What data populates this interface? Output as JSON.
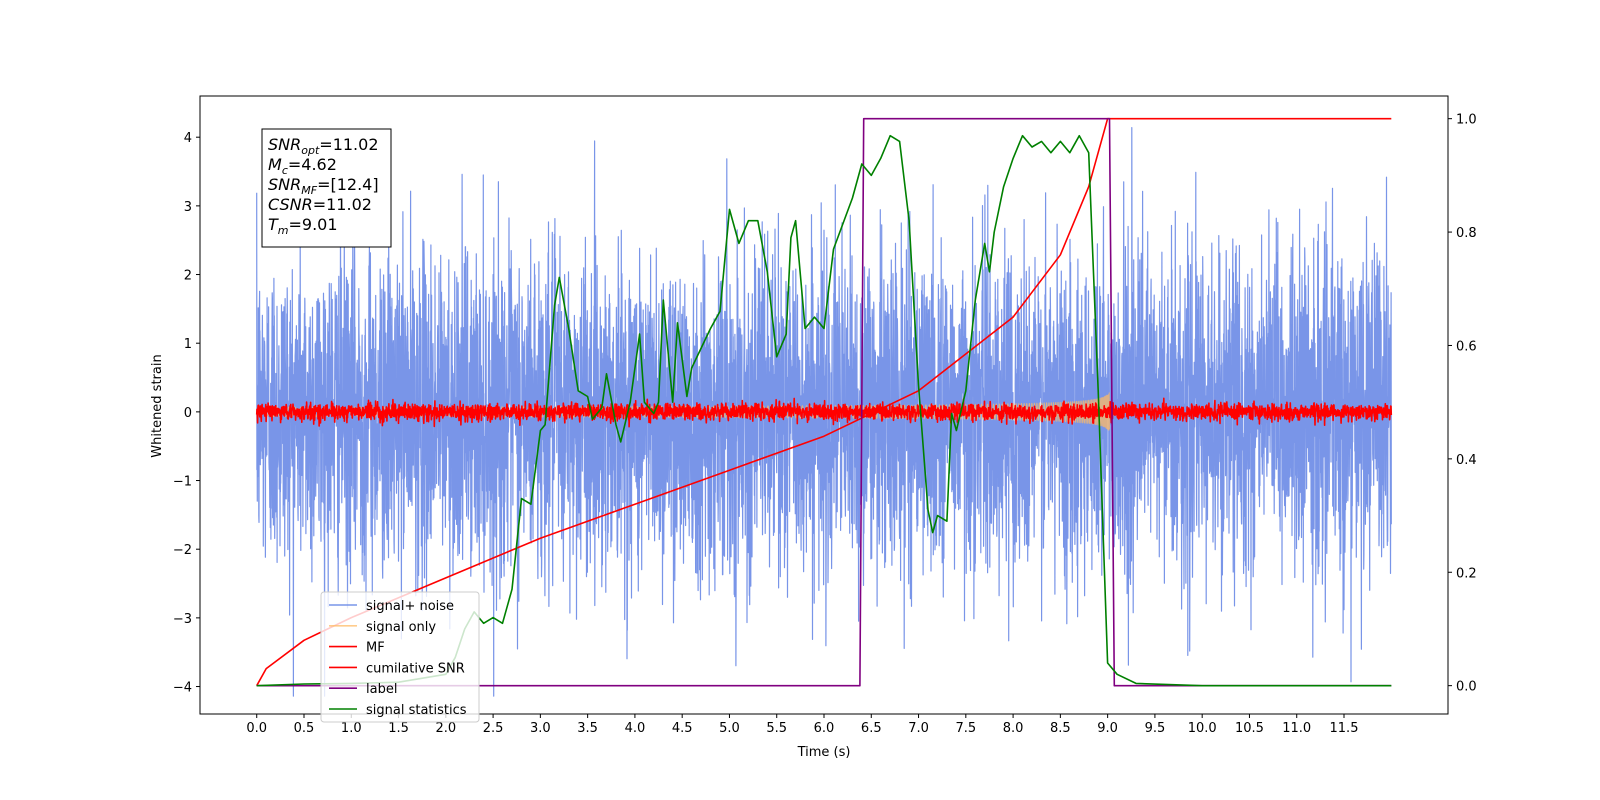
{
  "chart_data": {
    "type": "line",
    "xlabel": "Time (s)",
    "ylabel": "Whitened strain",
    "xlim": [
      -0.6,
      12.6
    ],
    "ylim": [
      -4.4,
      4.6
    ],
    "y2lim": [
      -0.05,
      1.04
    ],
    "x_ticks": [
      0.0,
      0.5,
      1.0,
      1.5,
      2.0,
      2.5,
      3.0,
      3.5,
      4.0,
      4.5,
      5.0,
      5.5,
      6.0,
      6.5,
      7.0,
      7.5,
      8.0,
      8.5,
      9.0,
      9.5,
      10.0,
      10.5,
      11.0,
      11.5
    ],
    "x_tick_labels": [
      "0.0",
      "0.5",
      "1.0",
      "1.5",
      "2.0",
      "2.5",
      "3.0",
      "3.5",
      "4.0",
      "4.5",
      "5.0",
      "5.5",
      "6.0",
      "6.5",
      "7.0",
      "7.5",
      "8.0",
      "8.5",
      "9.0",
      "9.5",
      "10.0",
      "10.5",
      "11.0",
      "11.5"
    ],
    "y_ticks": [
      -4,
      -3,
      -2,
      -1,
      0,
      1,
      2,
      3,
      4
    ],
    "y_tick_labels": [
      "−4",
      "−3",
      "−2",
      "−1",
      "0",
      "1",
      "2",
      "3",
      "4"
    ],
    "y2_ticks": [
      0.0,
      0.2,
      0.4,
      0.6,
      0.8,
      1.0
    ],
    "y2_tick_labels": [
      "0.0",
      "0.2",
      "0.4",
      "0.6",
      "0.8",
      "1.0"
    ],
    "grid": false,
    "legend_position": "lower-left",
    "series": [
      {
        "name": "signal+ noise",
        "color": "#6a8ae6",
        "axis": "left",
        "kind": "noise",
        "x_range": [
          0,
          12
        ],
        "std": 1.15
      },
      {
        "name": "signal only",
        "color": "#ffbb66",
        "axis": "left",
        "kind": "chirp",
        "x_range": [
          0,
          9.02
        ],
        "peak_amplitude": 0.8
      },
      {
        "name": "MF",
        "color": "#ff0000",
        "axis": "left",
        "kind": "noise",
        "x_range": [
          0,
          12
        ],
        "std": 0.06
      },
      {
        "name": "cumilative SNR",
        "color": "#ff0000",
        "axis": "right",
        "points": [
          [
            0.0,
            0.0
          ],
          [
            0.1,
            0.03
          ],
          [
            0.5,
            0.08
          ],
          [
            1.0,
            0.12
          ],
          [
            2.0,
            0.19
          ],
          [
            3.0,
            0.26
          ],
          [
            4.0,
            0.32
          ],
          [
            5.0,
            0.38
          ],
          [
            6.0,
            0.44
          ],
          [
            7.0,
            0.52
          ],
          [
            8.0,
            0.65
          ],
          [
            8.5,
            0.76
          ],
          [
            8.8,
            0.88
          ],
          [
            9.0,
            1.0
          ],
          [
            12.0,
            1.0
          ]
        ]
      },
      {
        "name": "label",
        "color": "#800080",
        "axis": "right",
        "points": [
          [
            0.0,
            0.0
          ],
          [
            6.38,
            0.0
          ],
          [
            6.42,
            1.0
          ],
          [
            9.02,
            1.0
          ],
          [
            9.07,
            0.0
          ],
          [
            12.0,
            0.0
          ]
        ]
      },
      {
        "name": "signal statistics",
        "color": "#008000",
        "axis": "right",
        "points": [
          [
            0.0,
            0.0
          ],
          [
            0.5,
            0.003
          ],
          [
            1.0,
            0.004
          ],
          [
            1.5,
            0.006
          ],
          [
            2.0,
            0.02
          ],
          [
            2.1,
            0.05
          ],
          [
            2.2,
            0.1
          ],
          [
            2.3,
            0.13
          ],
          [
            2.35,
            0.12
          ],
          [
            2.4,
            0.11
          ],
          [
            2.5,
            0.12
          ],
          [
            2.6,
            0.11
          ],
          [
            2.7,
            0.17
          ],
          [
            2.8,
            0.33
          ],
          [
            2.9,
            0.32
          ],
          [
            3.0,
            0.45
          ],
          [
            3.05,
            0.46
          ],
          [
            3.15,
            0.67
          ],
          [
            3.2,
            0.72
          ],
          [
            3.3,
            0.63
          ],
          [
            3.4,
            0.52
          ],
          [
            3.5,
            0.51
          ],
          [
            3.55,
            0.47
          ],
          [
            3.65,
            0.49
          ],
          [
            3.7,
            0.55
          ],
          [
            3.8,
            0.46
          ],
          [
            3.85,
            0.43
          ],
          [
            3.95,
            0.5
          ],
          [
            4.05,
            0.62
          ],
          [
            4.1,
            0.5
          ],
          [
            4.2,
            0.48
          ],
          [
            4.25,
            0.5
          ],
          [
            4.3,
            0.68
          ],
          [
            4.4,
            0.5
          ],
          [
            4.45,
            0.64
          ],
          [
            4.55,
            0.51
          ],
          [
            4.6,
            0.56
          ],
          [
            4.8,
            0.63
          ],
          [
            4.9,
            0.66
          ],
          [
            5.0,
            0.84
          ],
          [
            5.1,
            0.78
          ],
          [
            5.2,
            0.82
          ],
          [
            5.3,
            0.82
          ],
          [
            5.4,
            0.73
          ],
          [
            5.5,
            0.58
          ],
          [
            5.6,
            0.62
          ],
          [
            5.65,
            0.79
          ],
          [
            5.7,
            0.82
          ],
          [
            5.8,
            0.63
          ],
          [
            5.9,
            0.65
          ],
          [
            6.0,
            0.63
          ],
          [
            6.1,
            0.77
          ],
          [
            6.3,
            0.86
          ],
          [
            6.4,
            0.92
          ],
          [
            6.5,
            0.9
          ],
          [
            6.6,
            0.93
          ],
          [
            6.7,
            0.97
          ],
          [
            6.8,
            0.96
          ],
          [
            6.9,
            0.82
          ],
          [
            7.0,
            0.53
          ],
          [
            7.1,
            0.31
          ],
          [
            7.15,
            0.27
          ],
          [
            7.2,
            0.3
          ],
          [
            7.3,
            0.29
          ],
          [
            7.35,
            0.48
          ],
          [
            7.4,
            0.45
          ],
          [
            7.5,
            0.52
          ],
          [
            7.6,
            0.68
          ],
          [
            7.7,
            0.78
          ],
          [
            7.75,
            0.73
          ],
          [
            7.8,
            0.8
          ],
          [
            7.9,
            0.88
          ],
          [
            8.0,
            0.93
          ],
          [
            8.1,
            0.97
          ],
          [
            8.2,
            0.95
          ],
          [
            8.3,
            0.96
          ],
          [
            8.4,
            0.94
          ],
          [
            8.5,
            0.96
          ],
          [
            8.6,
            0.94
          ],
          [
            8.7,
            0.97
          ],
          [
            8.8,
            0.94
          ],
          [
            8.9,
            0.52
          ],
          [
            9.0,
            0.04
          ],
          [
            9.1,
            0.02
          ],
          [
            9.3,
            0.004
          ],
          [
            10.0,
            0.0
          ],
          [
            12.0,
            0.0
          ]
        ]
      }
    ],
    "annotation": {
      "lines": [
        {
          "base": "SNR",
          "sub": "opt",
          "rest": "=11.02"
        },
        {
          "base": "M",
          "sub": "c",
          "rest": "=4.62"
        },
        {
          "base": "SNR",
          "sub": "MF",
          "rest": "=[12.4]"
        },
        {
          "base": "CSNR",
          "sub": "",
          "rest": "=11.02"
        },
        {
          "base": "T",
          "sub": "m",
          "rest": "=9.01"
        }
      ]
    }
  }
}
